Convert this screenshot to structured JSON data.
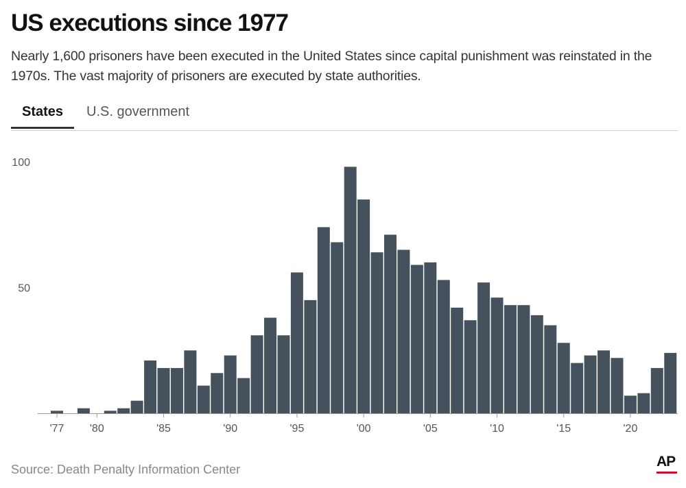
{
  "header": {
    "title": "US executions since 1977",
    "subtitle": "Nearly 1,600 prisoners have been executed in the United States since capital punishment was reinstated in the 1970s. The vast majority of prisoners are executed by state authorities."
  },
  "tabs": [
    {
      "label": "States",
      "active": true
    },
    {
      "label": "U.S. government",
      "active": false
    }
  ],
  "footer": {
    "source": "Source: Death Penalty Information Center",
    "logo": "AP",
    "logo_accent": "#e4002b"
  },
  "chart_data": {
    "type": "bar",
    "title": "",
    "xlabel": "",
    "ylabel": "",
    "bar_color": "#45525d",
    "ylim": [
      0,
      100
    ],
    "yticks": [
      {
        "value": 100,
        "label": "100"
      },
      {
        "value": 50,
        "label": "50"
      }
    ],
    "xticks": [
      {
        "value": 1977,
        "label": "'77"
      },
      {
        "value": 1980,
        "label": "'80"
      },
      {
        "value": 1985,
        "label": "'85"
      },
      {
        "value": 1990,
        "label": "'90"
      },
      {
        "value": 1995,
        "label": "'95"
      },
      {
        "value": 2000,
        "label": "'00"
      },
      {
        "value": 2005,
        "label": "'05"
      },
      {
        "value": 2010,
        "label": "'10"
      },
      {
        "value": 2015,
        "label": "'15"
      },
      {
        "value": 2020,
        "label": "'20"
      }
    ],
    "categories": [
      1977,
      1978,
      1979,
      1980,
      1981,
      1982,
      1983,
      1984,
      1985,
      1986,
      1987,
      1988,
      1989,
      1990,
      1991,
      1992,
      1993,
      1994,
      1995,
      1996,
      1997,
      1998,
      1999,
      2000,
      2001,
      2002,
      2003,
      2004,
      2005,
      2006,
      2007,
      2008,
      2009,
      2010,
      2011,
      2012,
      2013,
      2014,
      2015,
      2016,
      2017,
      2018,
      2019,
      2020,
      2021,
      2022,
      2023
    ],
    "values": [
      1,
      0,
      2,
      0,
      1,
      2,
      5,
      21,
      18,
      18,
      25,
      11,
      16,
      23,
      14,
      31,
      38,
      31,
      56,
      45,
      74,
      68,
      98,
      85,
      64,
      71,
      65,
      59,
      60,
      53,
      42,
      37,
      52,
      46,
      43,
      43,
      39,
      35,
      28,
      20,
      23,
      25,
      22,
      7,
      8,
      18,
      24
    ]
  }
}
